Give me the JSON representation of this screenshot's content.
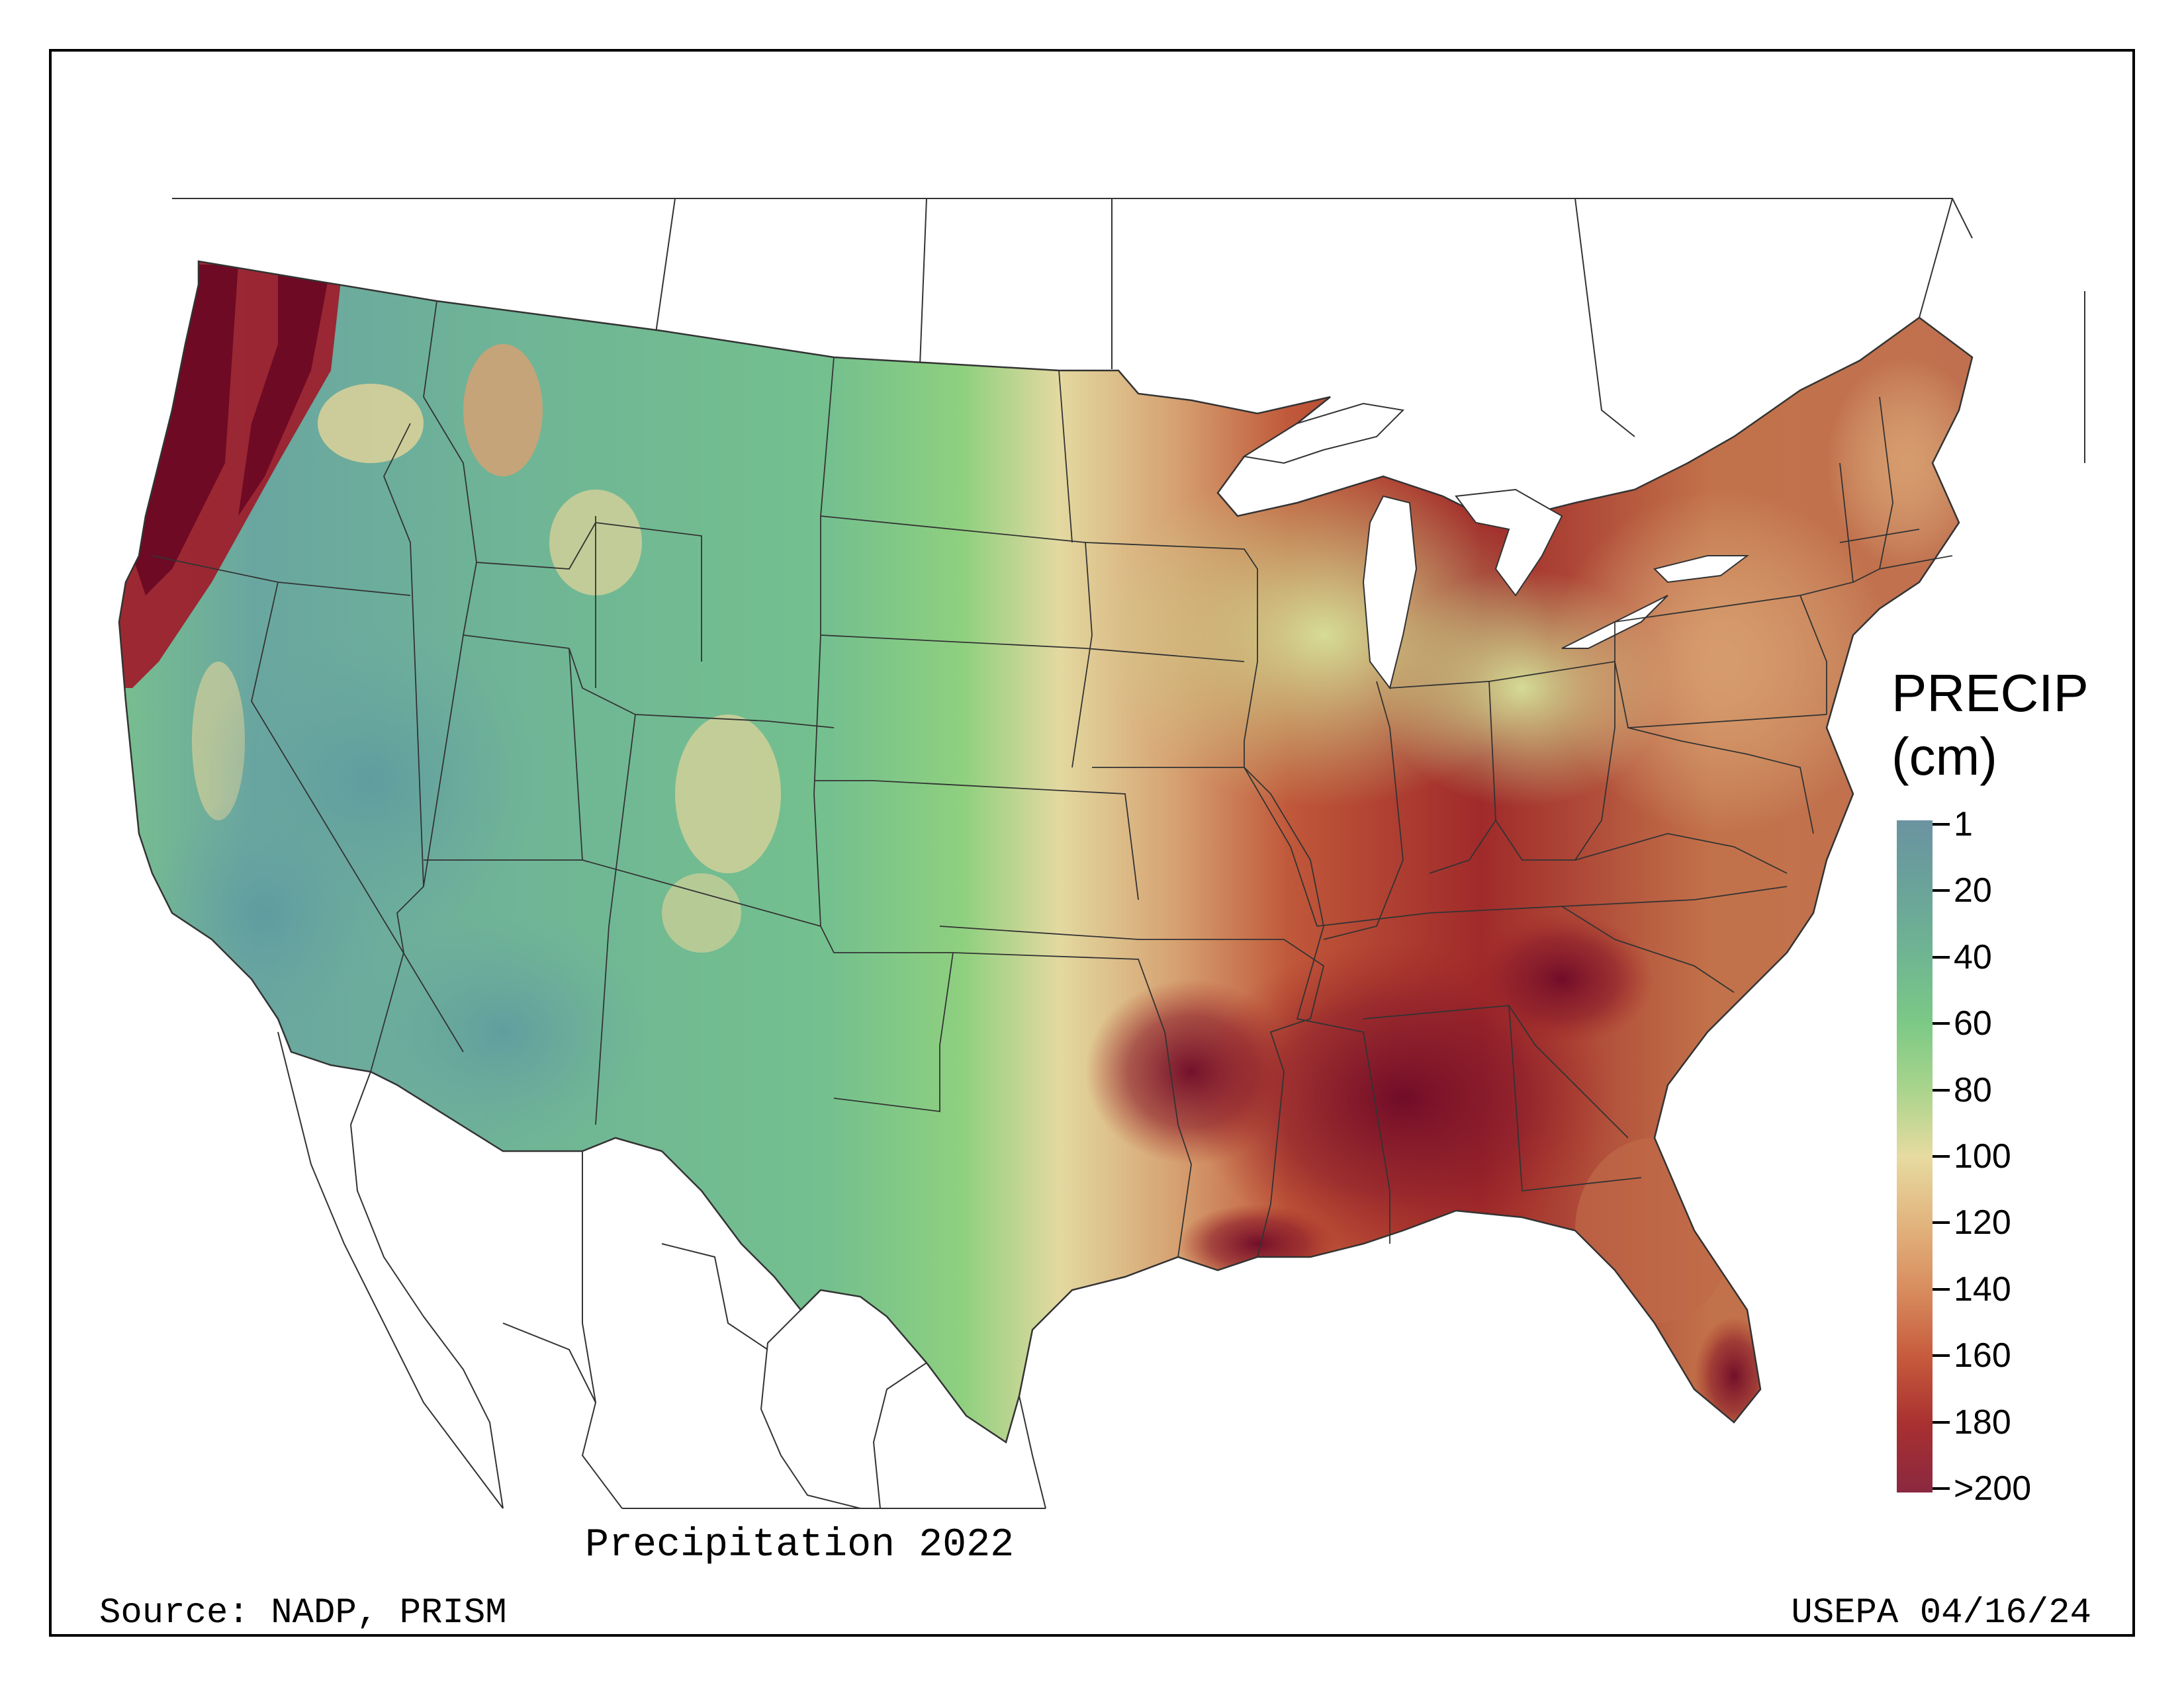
{
  "map": {
    "title": "Precipitation 2022",
    "source": "Source: NADP, PRISM",
    "credit": "USEPA 04/16/24",
    "region": "Contiguous United States",
    "colors": {
      "low": "#6a98a4",
      "mid_low": "#72c28a",
      "mid": "#e8dca0",
      "mid_high": "#d98e5a",
      "high": "#a52a24",
      "max": "#7a0a2a"
    }
  },
  "legend": {
    "title_line1": "PRECIP",
    "title_line2": "(cm)",
    "labels": [
      "1",
      "20",
      "40",
      "60",
      "80",
      "100",
      "120",
      "140",
      "160",
      "180",
      ">200"
    ],
    "gradient": [
      "#6b93a0",
      "#6aa39a",
      "#6fb592",
      "#7bc986",
      "#a9d48c",
      "#e6dba0",
      "#e2b47e",
      "#d88c5e",
      "#c65a3c",
      "#a83030",
      "#8a2840"
    ]
  },
  "chart_data": {
    "type": "heatmap",
    "title": "Precipitation 2022",
    "colorbar_label": "PRECIP (cm)",
    "colorbar_ticks": [
      "1",
      "20",
      "40",
      "60",
      "80",
      "100",
      "120",
      "140",
      "160",
      "180",
      ">200"
    ],
    "colorbar_range": [
      1,
      200
    ]
  }
}
